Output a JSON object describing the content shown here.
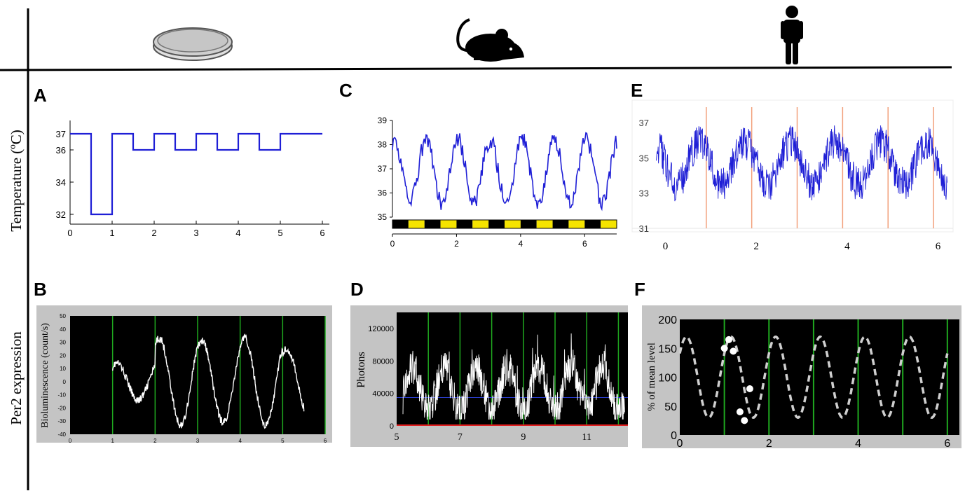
{
  "row_labels": {
    "top": "Temperature (ºC)",
    "bottom": "Per2 expression"
  },
  "column_icons": [
    "petri-dish-icon",
    "mouse-icon",
    "human-icon"
  ],
  "colors": {
    "blue_trace": "#1f1fd6",
    "dark_trace": "#1a1aa6",
    "white_trace": "#ffffff",
    "green_grid": "#1fa81f",
    "orange_line": "#f2a07b",
    "yellow_bar": "#f5e400",
    "panel_gray": "#c4c4c4",
    "dashed_model": "#cfcfcf"
  },
  "chart_data": [
    {
      "panel": "A",
      "type": "line",
      "ylabel": "Temperature (ºC)",
      "x_ticks": [
        "0",
        "1",
        "2",
        "3",
        "4",
        "5",
        "6"
      ],
      "y_ticks": [
        "32",
        "34",
        "36",
        "37"
      ],
      "xlim": [
        0,
        6.3
      ],
      "ylim": [
        31.5,
        37.8
      ],
      "x": [
        0,
        0.5,
        0.5,
        1,
        1,
        1.5,
        1.5,
        2,
        2,
        2.5,
        2.5,
        3,
        3,
        3.5,
        3.5,
        4,
        4,
        4.5,
        4.5,
        5,
        5,
        6
      ],
      "y": [
        37,
        37,
        32,
        32,
        37,
        37,
        36,
        36,
        37,
        37,
        36,
        36,
        37,
        37,
        36,
        36,
        37,
        37,
        36,
        36,
        37,
        37
      ]
    },
    {
      "panel": "B",
      "type": "line",
      "ylabel": "Bioluminescence (count/s)",
      "x_ticks": [
        "0",
        "1",
        "2",
        "3",
        "4",
        "5",
        "6"
      ],
      "y_ticks": [
        "50",
        "40",
        "30",
        "20",
        "10",
        "0",
        "-10",
        "-20",
        "-30",
        "-40"
      ],
      "xlim": [
        0,
        6
      ],
      "ylim": [
        -40,
        50
      ],
      "green_lines_x": [
        1,
        2,
        3,
        4,
        5,
        6
      ],
      "series": [
        {
          "x_start": 1.0,
          "x_end": 5.5,
          "period": 1.0,
          "phase_peak": 2.1,
          "mean": 0,
          "amp": [
            14,
            33,
            31,
            33,
            25
          ],
          "noise": 3
        }
      ]
    },
    {
      "panel": "C",
      "type": "line",
      "x_ticks": [
        "0",
        "2",
        "4",
        "6"
      ],
      "y_ticks": [
        "35",
        "36",
        "37",
        "38",
        "39"
      ],
      "xlim": [
        0,
        7
      ],
      "ylim": [
        35,
        39
      ],
      "light_dark_bar": 14,
      "series": [
        {
          "x_start": 0,
          "x_end": 7,
          "period": 1.0,
          "phase_peak": 0.05,
          "mean": 36.9,
          "amp": 1.3,
          "noise": 0.35
        }
      ]
    },
    {
      "panel": "D",
      "type": "line",
      "ylabel": "Photons",
      "x_ticks": [
        "5",
        "7",
        "9",
        "11"
      ],
      "y_ticks": [
        "0",
        "40000",
        "80000",
        "120000"
      ],
      "xlim": [
        5,
        12.2
      ],
      "ylim": [
        0,
        140000
      ],
      "green_lines_x": [
        6,
        7,
        8,
        9,
        10,
        11,
        12
      ],
      "series": [
        {
          "x_start": 5.2,
          "x_end": 12.2,
          "period": 1.0,
          "phase_peak": 5.5,
          "mean": 45000,
          "amp": 28000,
          "noise": 22000
        }
      ]
    },
    {
      "panel": "E",
      "type": "line",
      "x_ticks": [
        "0",
        "2",
        "4",
        "6"
      ],
      "y_ticks": [
        "31",
        "33",
        "35",
        "37"
      ],
      "xlim": [
        -0.3,
        6.3
      ],
      "ylim": [
        31,
        38
      ],
      "orange_lines_x": [
        0.9,
        1.9,
        2.9,
        3.9,
        4.9,
        5.9
      ],
      "series": [
        {
          "x_start": -0.2,
          "x_end": 6.2,
          "period": 1.0,
          "phase_peak": 0.75,
          "mean": 34.7,
          "amp": 1.2,
          "noise": 1.0
        }
      ]
    },
    {
      "panel": "F",
      "type": "line",
      "ylabel": "% of mean level",
      "x_ticks": [
        "0",
        "2",
        "4",
        "6"
      ],
      "y_ticks": [
        "0",
        "50",
        "100",
        "150",
        "200"
      ],
      "xlim": [
        0,
        6.2
      ],
      "ylim": [
        0,
        200
      ],
      "green_lines_x": [
        1,
        2,
        3,
        4,
        5,
        6
      ],
      "series": [
        {
          "name": "",
          "style": "dashed",
          "period": 1.0,
          "phase_peak": 1.15,
          "mean": 100,
          "amp": 70,
          "x_start": 0,
          "x_end": 6
        }
      ],
      "points": {
        "x": [
          1.0,
          1.1,
          1.2,
          1.35,
          1.45,
          1.57
        ],
        "y": [
          150,
          165,
          145,
          40,
          25,
          80
        ]
      }
    }
  ]
}
